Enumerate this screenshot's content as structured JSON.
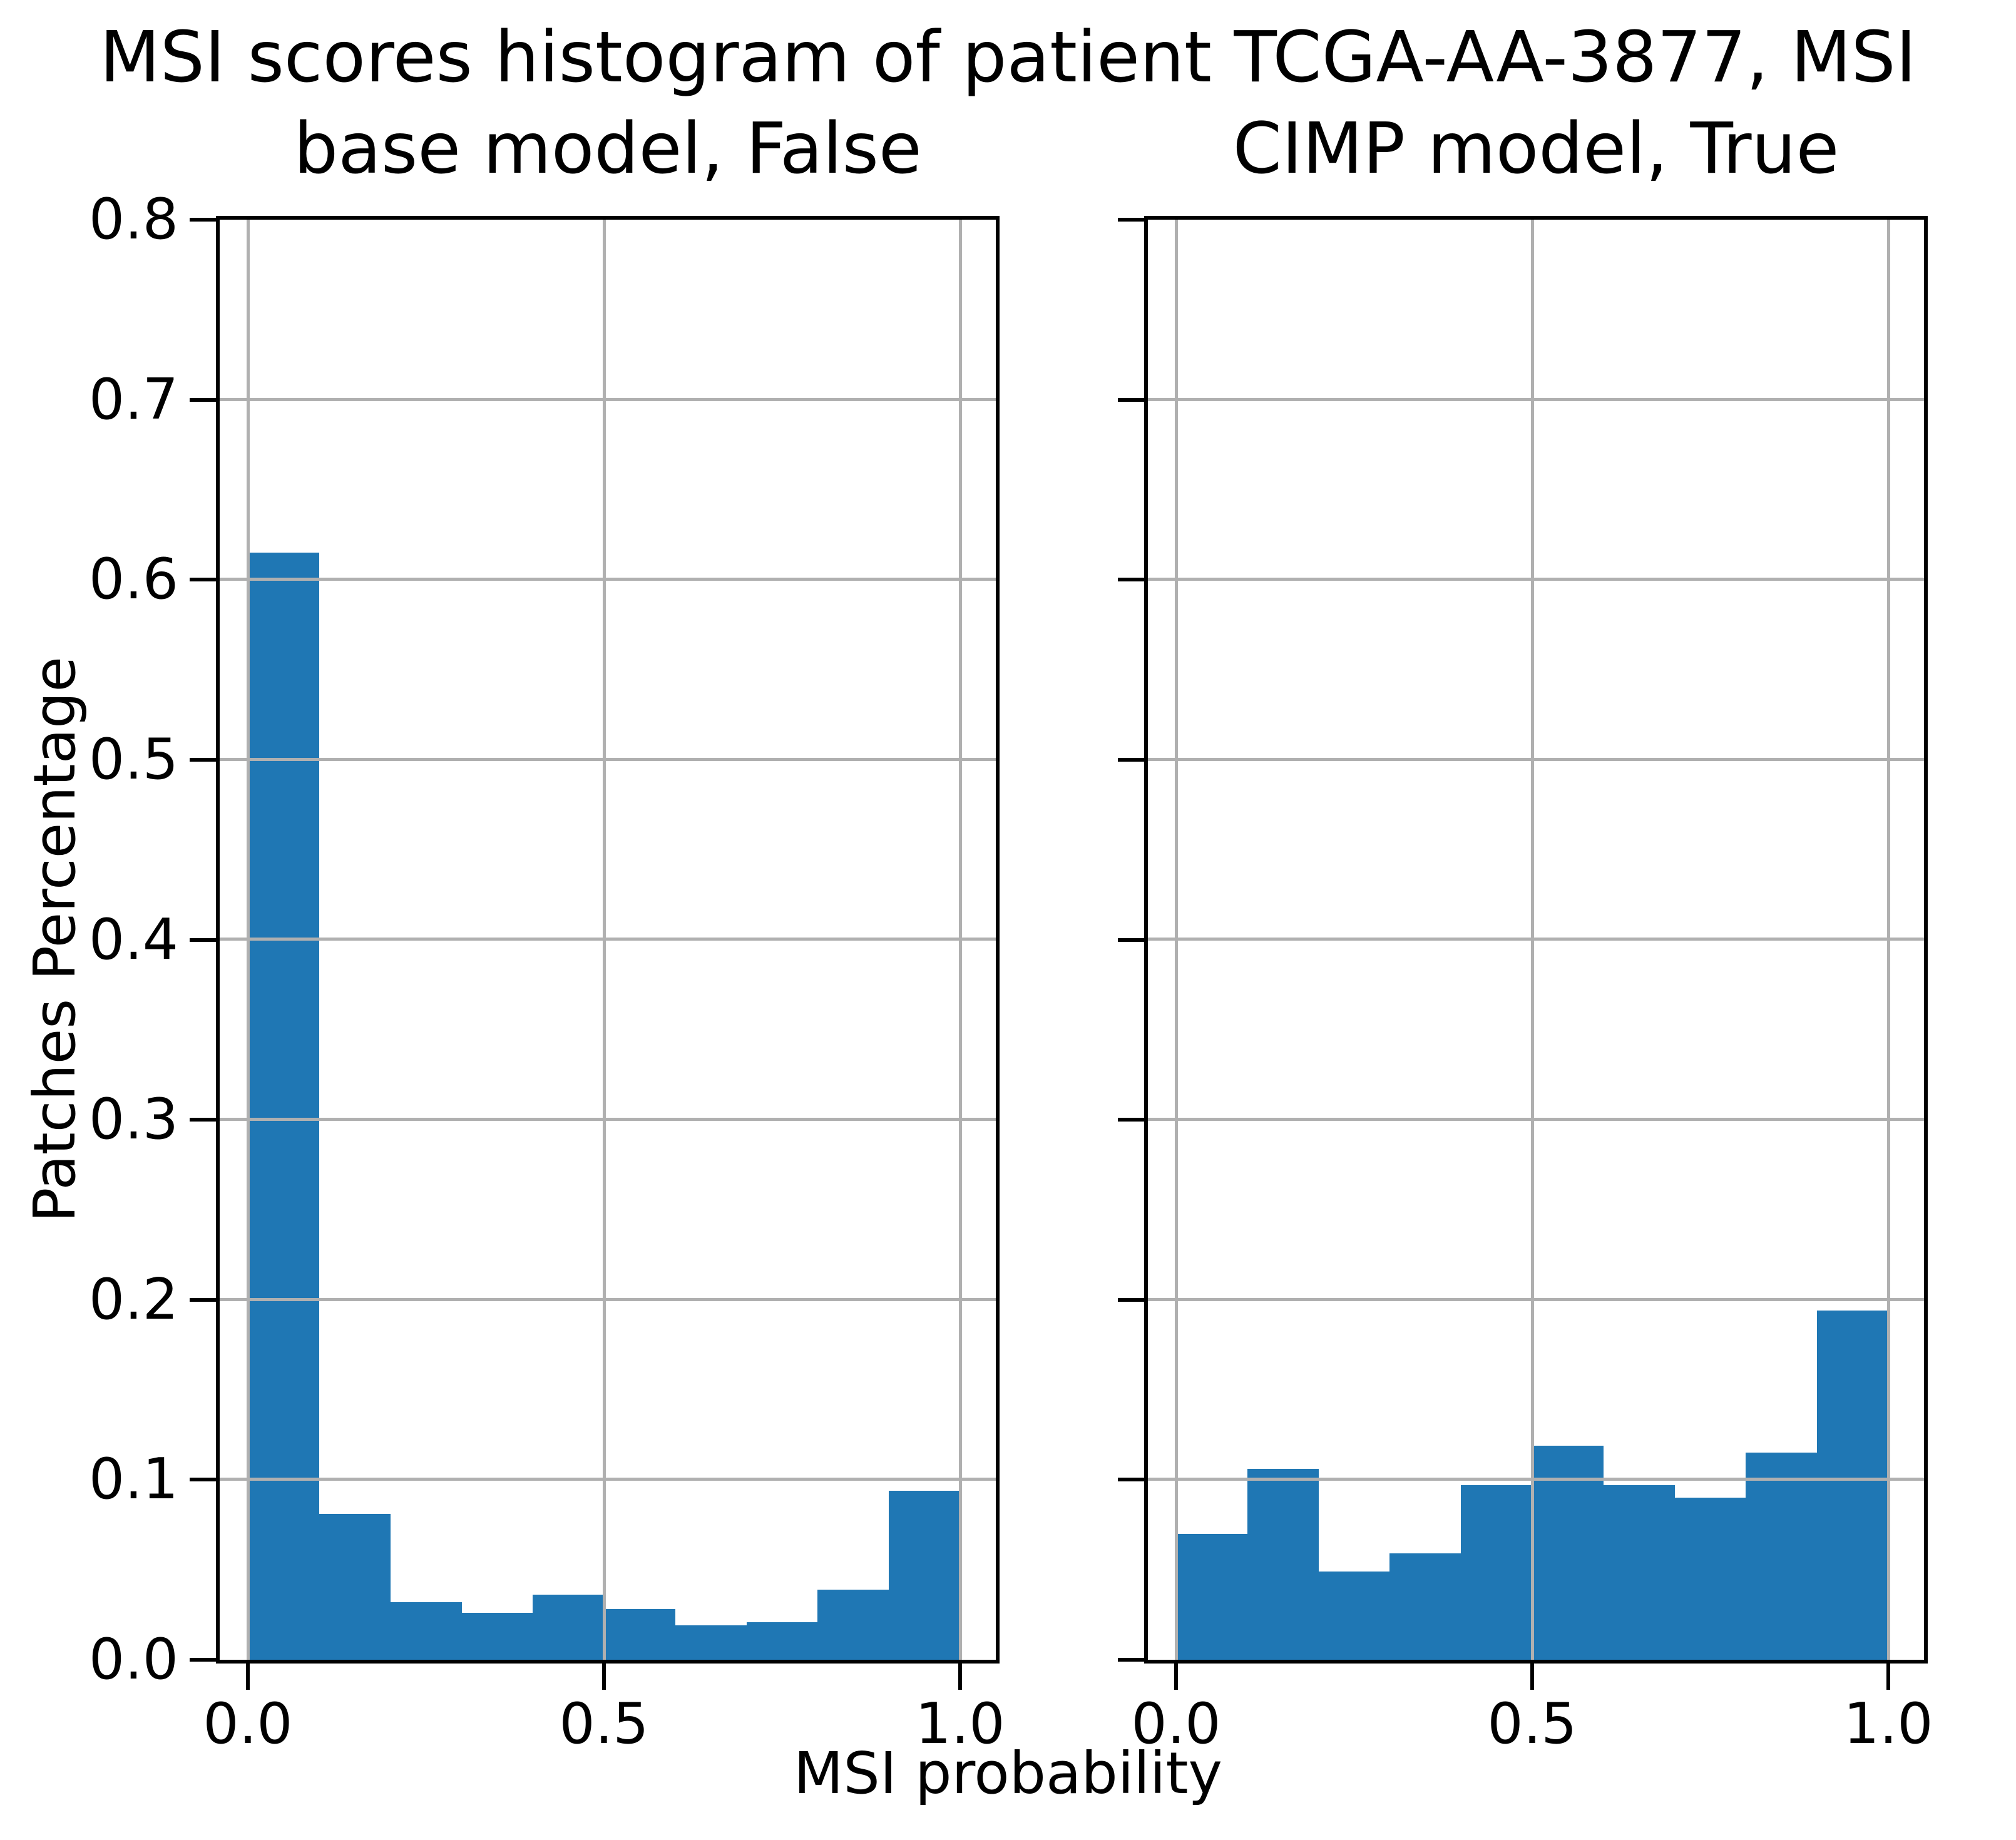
{
  "chart_data": {
    "type": "bar",
    "subtype": "histogram",
    "title": "MSI scores histogram of patient TCGA-AA-3877, MSI",
    "xlabel": "MSI probability",
    "ylabel": "Patches Percentage",
    "bin_edges": [
      0.0,
      0.1,
      0.2,
      0.3,
      0.4,
      0.5,
      0.6,
      0.7,
      0.8,
      0.9,
      1.0
    ],
    "series": [
      {
        "name": "base model, False",
        "values": [
          0.615,
          0.081,
          0.032,
          0.026,
          0.036,
          0.028,
          0.019,
          0.021,
          0.039,
          0.094
        ]
      },
      {
        "name": "CIMP model, True",
        "values": [
          0.07,
          0.106,
          0.049,
          0.059,
          0.097,
          0.119,
          0.097,
          0.09,
          0.115,
          0.194
        ]
      }
    ],
    "ylim": [
      0.0,
      0.8
    ],
    "xlim": [
      -0.05,
      1.05
    ],
    "yticks": [
      0.0,
      0.1,
      0.2,
      0.3,
      0.4,
      0.5,
      0.6,
      0.7,
      0.8
    ],
    "ytick_labels": [
      "0.0",
      "0.1",
      "0.2",
      "0.3",
      "0.4",
      "0.5",
      "0.6",
      "0.7",
      "0.8"
    ],
    "xticks": [
      0.0,
      0.5,
      1.0
    ],
    "xtick_labels": [
      "0.0",
      "0.5",
      "1.0"
    ],
    "grid": true,
    "grid_on_top_of_bars": true,
    "legend": false,
    "bar_color": "#1f77b4",
    "grid_color": "#b0b0b0",
    "spine_color": "#000000",
    "text_color": "#000000",
    "background": "#ffffff"
  }
}
